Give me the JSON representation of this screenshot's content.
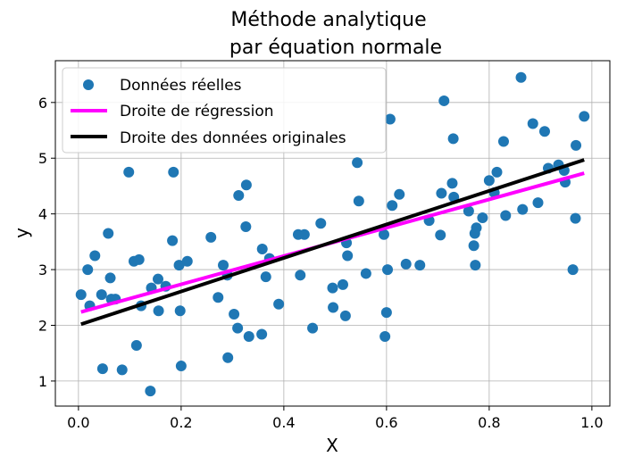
{
  "chart_data": {
    "type": "scatter",
    "title_lines": [
      "Méthode analytique",
      "par équation normale"
    ],
    "xlabel": "X",
    "ylabel": "y",
    "xlim": [
      -0.045,
      1.035
    ],
    "ylim": [
      0.55,
      6.75
    ],
    "xticks": [
      0.0,
      0.2,
      0.4,
      0.6,
      0.8,
      1.0
    ],
    "xtick_labels": [
      "0.0",
      "0.2",
      "0.4",
      "0.6",
      "0.8",
      "1.0"
    ],
    "yticks": [
      1,
      2,
      3,
      4,
      5,
      6
    ],
    "ytick_labels": [
      "1",
      "2",
      "3",
      "4",
      "5",
      "6"
    ],
    "grid": true,
    "legend_position": "top-left",
    "series": [
      {
        "name": "Données réelles",
        "kind": "scatter",
        "color": "#1f77b4",
        "points": [
          [
            0.005,
            2.55
          ],
          [
            0.018,
            3.0
          ],
          [
            0.022,
            2.35
          ],
          [
            0.032,
            3.25
          ],
          [
            0.045,
            2.55
          ],
          [
            0.047,
            1.22
          ],
          [
            0.058,
            3.65
          ],
          [
            0.062,
            2.85
          ],
          [
            0.064,
            2.47
          ],
          [
            0.072,
            2.47
          ],
          [
            0.085,
            1.2
          ],
          [
            0.098,
            4.75
          ],
          [
            0.108,
            3.15
          ],
          [
            0.113,
            1.64
          ],
          [
            0.118,
            3.18
          ],
          [
            0.122,
            2.35
          ],
          [
            0.14,
            0.82
          ],
          [
            0.142,
            2.67
          ],
          [
            0.155,
            2.83
          ],
          [
            0.156,
            2.26
          ],
          [
            0.17,
            2.7
          ],
          [
            0.183,
            3.52
          ],
          [
            0.185,
            4.75
          ],
          [
            0.196,
            3.08
          ],
          [
            0.198,
            2.26
          ],
          [
            0.2,
            1.27
          ],
          [
            0.212,
            3.15
          ],
          [
            0.258,
            3.58
          ],
          [
            0.272,
            2.5
          ],
          [
            0.282,
            3.08
          ],
          [
            0.29,
            2.9
          ],
          [
            0.291,
            1.42
          ],
          [
            0.303,
            2.2
          ],
          [
            0.31,
            1.95
          ],
          [
            0.312,
            4.33
          ],
          [
            0.326,
            3.77
          ],
          [
            0.327,
            4.52
          ],
          [
            0.332,
            1.8
          ],
          [
            0.357,
            1.84
          ],
          [
            0.358,
            3.37
          ],
          [
            0.365,
            2.87
          ],
          [
            0.372,
            3.2
          ],
          [
            0.39,
            2.38
          ],
          [
            0.428,
            3.63
          ],
          [
            0.432,
            2.9
          ],
          [
            0.44,
            3.63
          ],
          [
            0.456,
            1.95
          ],
          [
            0.472,
            3.83
          ],
          [
            0.495,
            2.67
          ],
          [
            0.496,
            2.32
          ],
          [
            0.515,
            2.73
          ],
          [
            0.52,
            2.17
          ],
          [
            0.522,
            3.48
          ],
          [
            0.524,
            3.25
          ],
          [
            0.543,
            4.92
          ],
          [
            0.546,
            4.23
          ],
          [
            0.56,
            2.93
          ],
          [
            0.595,
            3.63
          ],
          [
            0.597,
            1.8
          ],
          [
            0.6,
            2.23
          ],
          [
            0.602,
            3.0
          ],
          [
            0.607,
            5.7
          ],
          [
            0.611,
            4.15
          ],
          [
            0.625,
            4.35
          ],
          [
            0.638,
            3.1
          ],
          [
            0.665,
            3.08
          ],
          [
            0.683,
            3.88
          ],
          [
            0.705,
            3.62
          ],
          [
            0.707,
            4.37
          ],
          [
            0.712,
            6.03
          ],
          [
            0.728,
            4.55
          ],
          [
            0.73,
            5.35
          ],
          [
            0.731,
            4.3
          ],
          [
            0.76,
            4.05
          ],
          [
            0.77,
            3.43
          ],
          [
            0.772,
            3.65
          ],
          [
            0.773,
            3.08
          ],
          [
            0.775,
            3.75
          ],
          [
            0.787,
            3.93
          ],
          [
            0.8,
            4.6
          ],
          [
            0.81,
            4.38
          ],
          [
            0.815,
            4.75
          ],
          [
            0.828,
            5.3
          ],
          [
            0.832,
            3.97
          ],
          [
            0.862,
            6.45
          ],
          [
            0.865,
            4.08
          ],
          [
            0.885,
            5.62
          ],
          [
            0.895,
            4.2
          ],
          [
            0.908,
            5.48
          ],
          [
            0.915,
            4.82
          ],
          [
            0.935,
            4.88
          ],
          [
            0.946,
            4.78
          ],
          [
            0.948,
            4.57
          ],
          [
            0.963,
            3.0
          ],
          [
            0.968,
            3.92
          ],
          [
            0.969,
            5.23
          ],
          [
            0.985,
            5.75
          ]
        ]
      },
      {
        "name": "Droite de régression",
        "kind": "line",
        "color": "#ff00ff",
        "points": [
          [
            0.005,
            2.24
          ],
          [
            0.985,
            4.73
          ]
        ]
      },
      {
        "name": "Droite des données originales",
        "kind": "line",
        "color": "#000000",
        "points": [
          [
            0.005,
            2.02
          ],
          [
            0.985,
            4.97
          ]
        ]
      }
    ]
  }
}
